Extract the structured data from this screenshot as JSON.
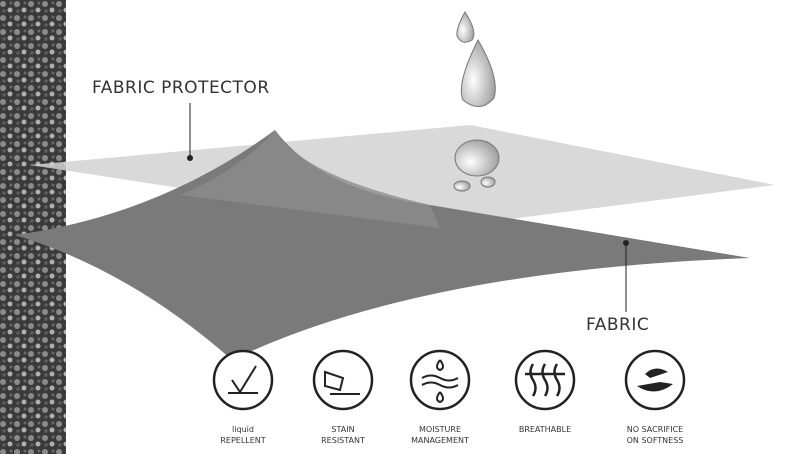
{
  "labels": {
    "protector": "FABRIC PROTECTOR",
    "fabric": "FABRIC"
  },
  "features": [
    {
      "lines": [
        "liquid",
        "REPELLENT"
      ]
    },
    {
      "lines": [
        "STAIN",
        "RESISTANT"
      ]
    },
    {
      "lines": [
        "MOISTURE",
        "MANAGEMENT"
      ]
    },
    {
      "lines": [
        "BREATHABLE"
      ]
    },
    {
      "lines": [
        "NO SACRIFICE",
        "ON SOFTNESS"
      ]
    }
  ]
}
